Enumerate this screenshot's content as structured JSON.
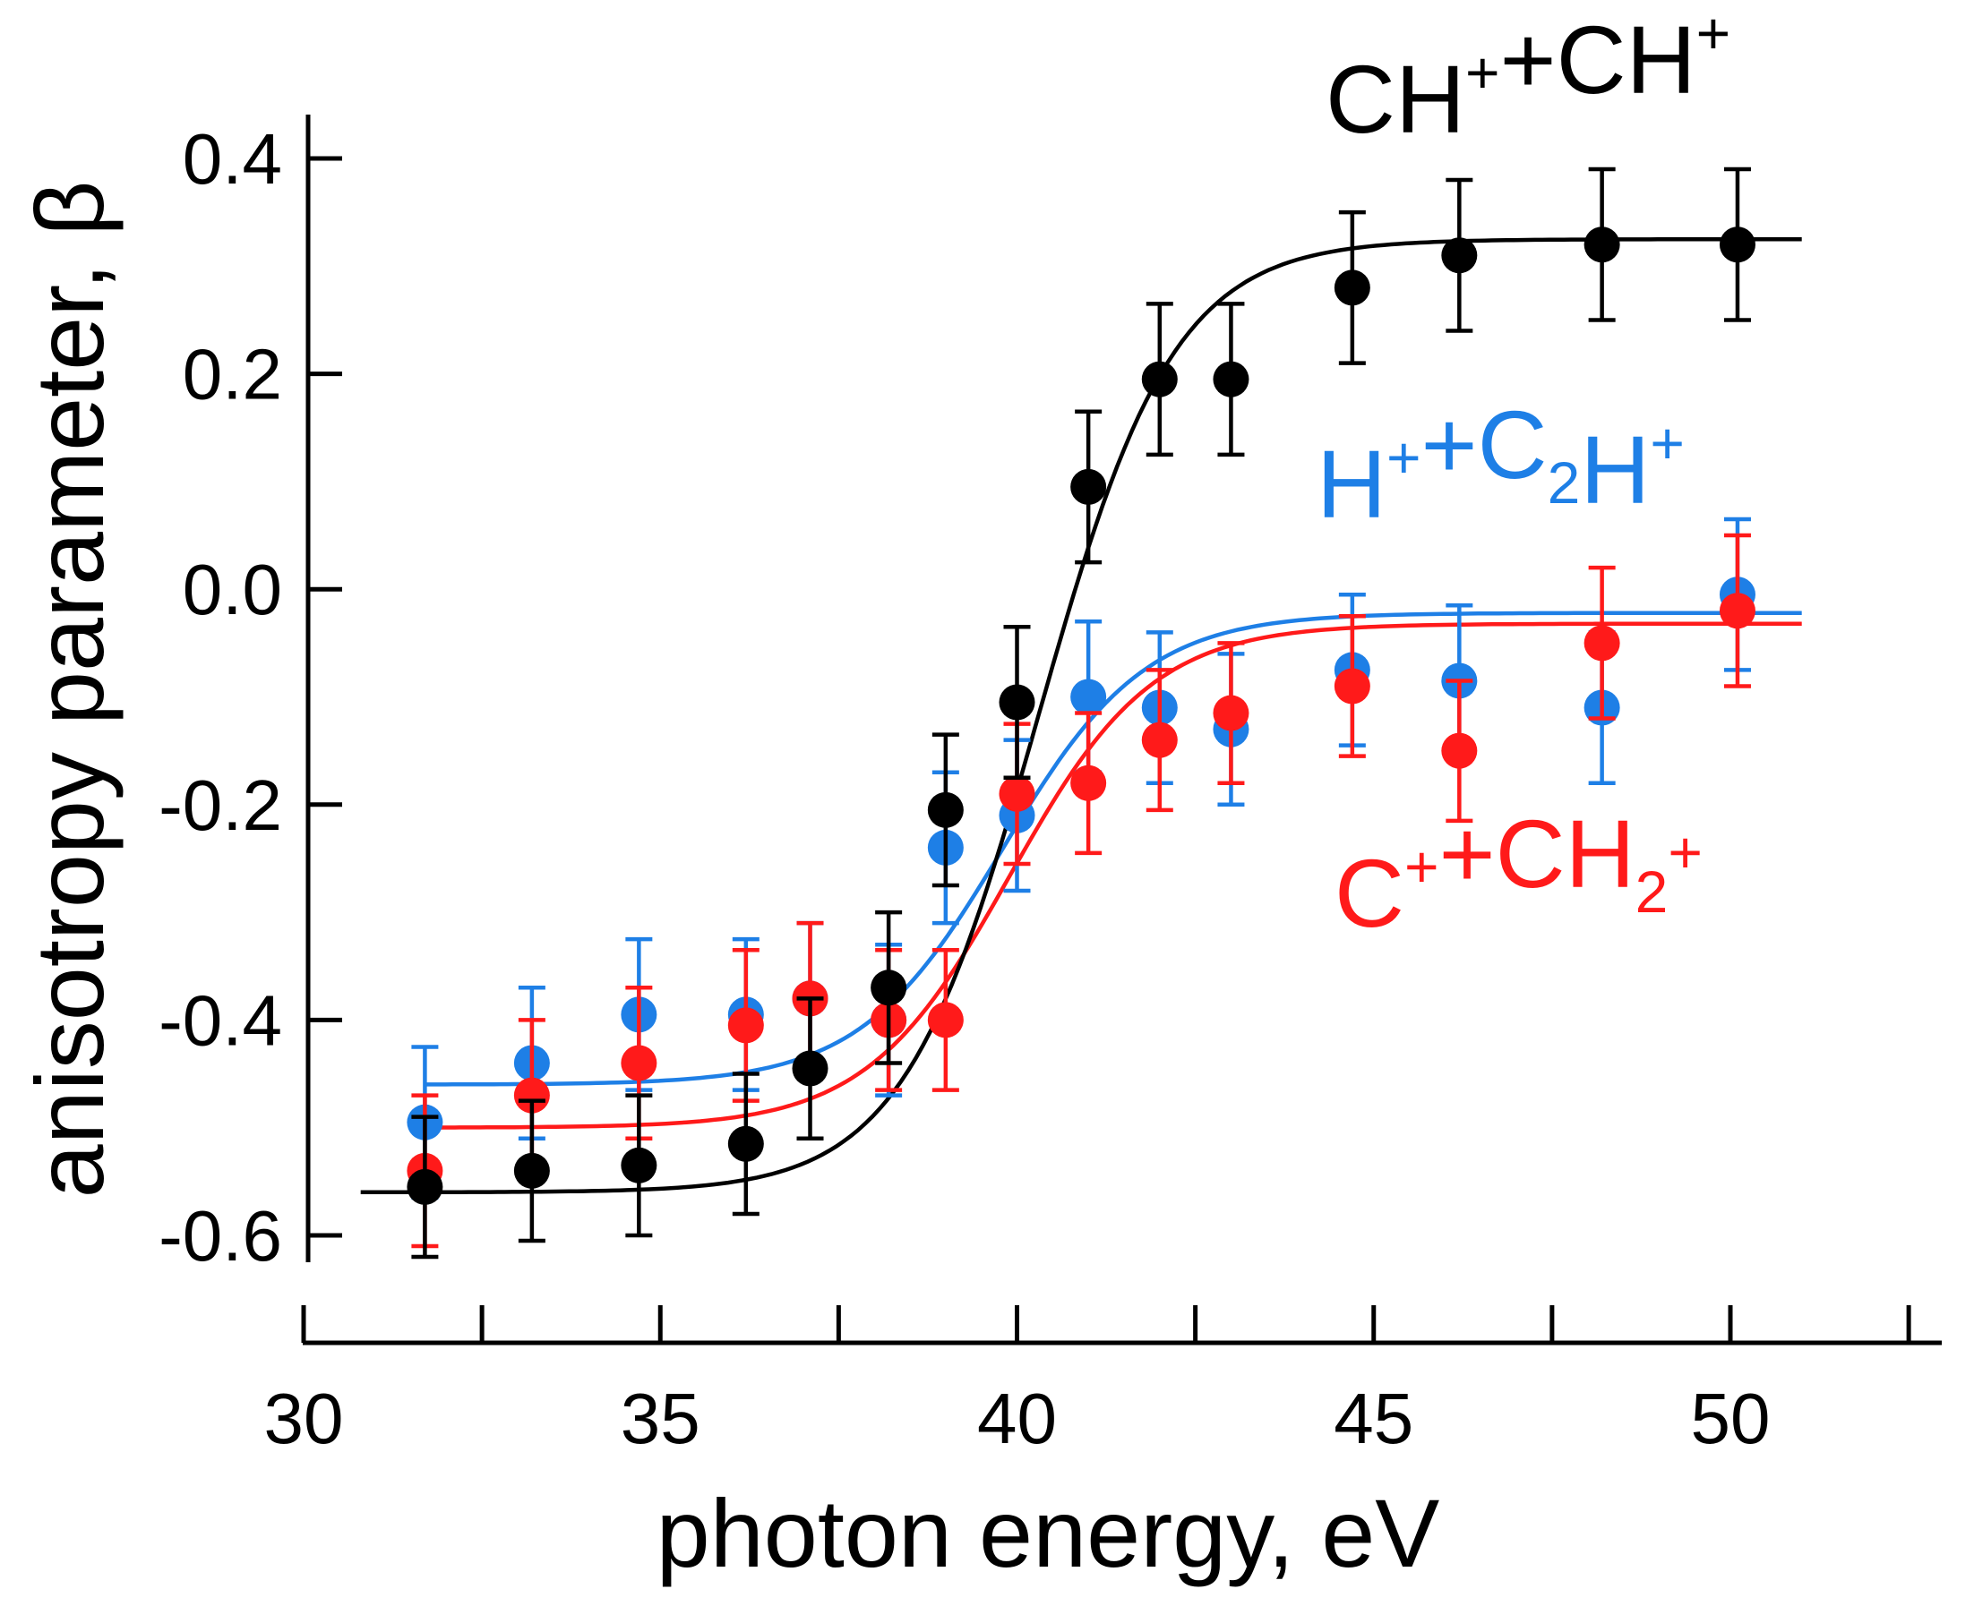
{
  "chart_data": {
    "type": "scatter",
    "title": "",
    "xlabel": "photon energy, eV",
    "ylabel": "anisotropy parameter, β",
    "xlim": [
      30,
      53
    ],
    "ylim": [
      -0.6,
      0.4
    ],
    "x_ticks": [
      30,
      35,
      40,
      45,
      50
    ],
    "x_tick_labels": [
      "30",
      "35",
      "40",
      "45",
      "50"
    ],
    "y_ticks": [
      0.4,
      0.2,
      0.0,
      -0.2,
      -0.4,
      -0.6
    ],
    "y_tick_labels": [
      "0.4",
      "0.2",
      "0.0",
      "-0.2",
      "-0.4",
      "-0.6"
    ],
    "grid": false,
    "series": [
      {
        "name": "CH⁺+CH⁺",
        "color": "#000000",
        "label_parts": [
          {
            "text": "CH",
            "shift": "none"
          },
          {
            "text": "+",
            "shift": "super"
          },
          {
            "text": "+CH",
            "shift": "none"
          },
          {
            "text": "+",
            "shift": "super"
          }
        ],
        "x": [
          31.7,
          33.2,
          34.7,
          36.2,
          37.1,
          38.2,
          39.0,
          40.0,
          41.0,
          42.0,
          43.0,
          44.7,
          46.2,
          48.2,
          50.1
        ],
        "y": [
          -0.555,
          -0.54,
          -0.535,
          -0.515,
          -0.445,
          -0.37,
          -0.205,
          -0.105,
          0.095,
          0.195,
          0.195,
          0.28,
          0.31,
          0.32,
          0.32
        ],
        "err": [
          0.065,
          0.065,
          0.065,
          0.065,
          0.065,
          0.07,
          0.07,
          0.07,
          0.07,
          0.07,
          0.07,
          0.07,
          0.07,
          0.07,
          0.07
        ],
        "fit": {
          "low": -0.56,
          "high": 0.325,
          "center": 40.3,
          "width": 0.95,
          "x_range": [
            30.8,
            51.0
          ]
        }
      },
      {
        "name": "H⁺+C₂H⁺",
        "color": "#1e7fe6",
        "label_parts": [
          {
            "text": "H",
            "shift": "none"
          },
          {
            "text": "+",
            "shift": "super"
          },
          {
            "text": "+C",
            "shift": "none"
          },
          {
            "text": "2",
            "shift": "sub"
          },
          {
            "text": "H",
            "shift": "none"
          },
          {
            "text": "+",
            "shift": "super"
          }
        ],
        "x": [
          31.7,
          33.2,
          34.7,
          36.2,
          37.1,
          38.2,
          39.0,
          40.0,
          41.0,
          42.0,
          43.0,
          44.7,
          46.2,
          48.2,
          50.1
        ],
        "y": [
          -0.495,
          -0.44,
          -0.395,
          -0.395,
          -0.38,
          -0.4,
          -0.24,
          -0.21,
          -0.1,
          -0.11,
          -0.13,
          -0.075,
          -0.085,
          -0.11,
          -0.005
        ],
        "err": [
          0.07,
          0.07,
          0.07,
          0.07,
          0.07,
          0.07,
          0.07,
          0.07,
          0.07,
          0.07,
          0.07,
          0.07,
          0.07,
          0.07,
          0.07
        ],
        "fit": {
          "low": -0.46,
          "high": -0.022,
          "center": 39.8,
          "width": 1.0,
          "x_range": [
            31.7,
            51.0
          ]
        }
      },
      {
        "name": "C⁺+CH₂⁺",
        "color": "#ff1a1a",
        "label_parts": [
          {
            "text": "C",
            "shift": "none"
          },
          {
            "text": "+",
            "shift": "super"
          },
          {
            "text": "+CH",
            "shift": "none"
          },
          {
            "text": "2",
            "shift": "sub"
          },
          {
            "text": "+",
            "shift": "super"
          }
        ],
        "x": [
          31.7,
          33.2,
          34.7,
          36.2,
          37.1,
          38.2,
          39.0,
          40.0,
          41.0,
          42.0,
          43.0,
          44.7,
          46.2,
          48.2,
          50.1
        ],
        "y": [
          -0.54,
          -0.47,
          -0.44,
          -0.405,
          -0.38,
          -0.4,
          -0.4,
          -0.19,
          -0.18,
          -0.14,
          -0.115,
          -0.09,
          -0.15,
          -0.05,
          -0.02
        ],
        "err": [
          0.07,
          0.07,
          0.07,
          0.07,
          0.07,
          0.065,
          0.065,
          0.065,
          0.065,
          0.065,
          0.065,
          0.065,
          0.065,
          0.07,
          0.07
        ],
        "fit": {
          "low": -0.5,
          "high": -0.032,
          "center": 39.9,
          "width": 1.0,
          "x_range": [
            31.7,
            51.0
          ]
        }
      }
    ]
  }
}
